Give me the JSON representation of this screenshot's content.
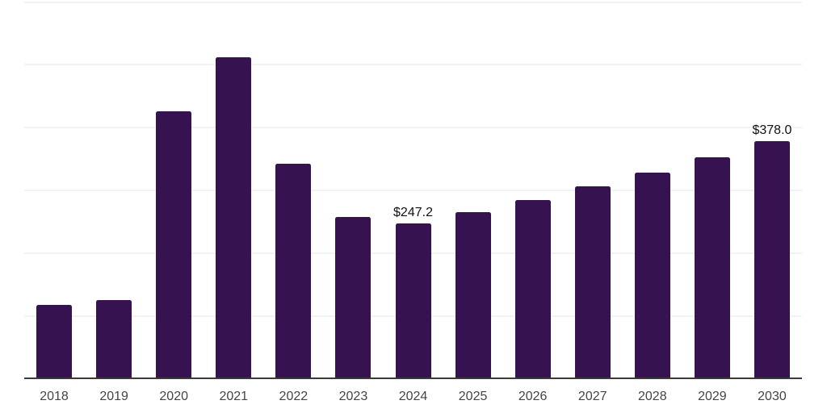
{
  "chart_data": {
    "type": "bar",
    "title": "",
    "xlabel": "",
    "ylabel": "",
    "categories": [
      "2018",
      "2019",
      "2020",
      "2021",
      "2022",
      "2023",
      "2024",
      "2025",
      "2026",
      "2027",
      "2028",
      "2029",
      "2030"
    ],
    "values": [
      118,
      126,
      426,
      511,
      342,
      258,
      247.2,
      265,
      285,
      306,
      328,
      352,
      378
    ],
    "data_labels": [
      "",
      "",
      "",
      "",
      "",
      "",
      "$247.2",
      "",
      "",
      "",
      "",
      "",
      "$378.0"
    ],
    "ylim": [
      0,
      600
    ],
    "grid_step": 100,
    "grid": true,
    "legend": false,
    "colors": {
      "bar": "#361250",
      "axis": "#3a3a3a",
      "gridline": "#f2f2f2",
      "data_label": "#111111",
      "tick_label": "#444444",
      "background": "#ffffff"
    }
  }
}
